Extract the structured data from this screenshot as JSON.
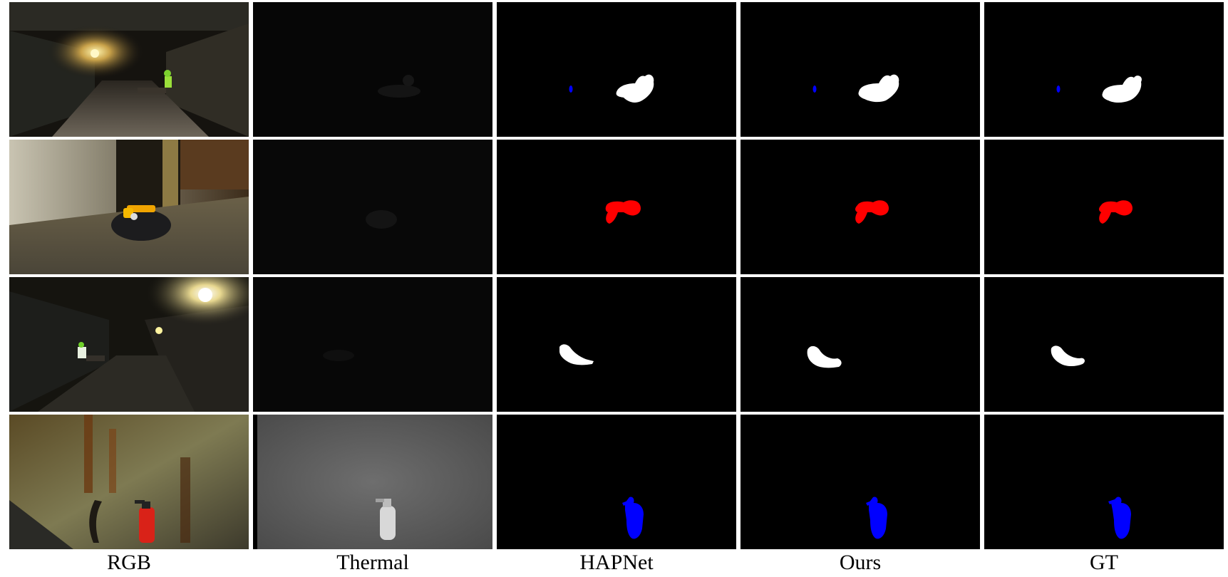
{
  "figure": {
    "columns": [
      {
        "label": "RGB"
      },
      {
        "label": "Thermal"
      },
      {
        "label": "HAPNet"
      },
      {
        "label": "Ours"
      },
      {
        "label": "GT"
      }
    ],
    "class_colors": {
      "person": "#ffffff",
      "drill": "#ff0000",
      "extinguisher": "#0000ff",
      "background": "#000000"
    },
    "rows": [
      {
        "scene": "tunnel-with-person-and-lamp"
      },
      {
        "scene": "drill-on-rock"
      },
      {
        "scene": "person-in-dim-tunnel"
      },
      {
        "scene": "fire-extinguisher-by-wall"
      }
    ]
  }
}
